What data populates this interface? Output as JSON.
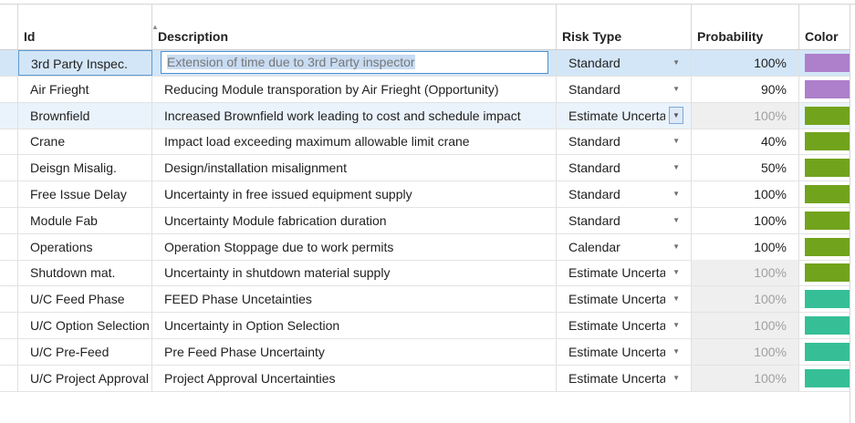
{
  "columns": {
    "id": "Id",
    "description": "Description",
    "risk_type": "Risk Type",
    "probability": "Probability",
    "color": "Color"
  },
  "rows": [
    {
      "id": "3rd Party Inspec.",
      "description": "Extension of time due to 3rd Party inspector",
      "risk_type": "Standard",
      "probability": "100%",
      "color": "#ae7fcb",
      "prob_disabled": false,
      "editing": true
    },
    {
      "id": "Air Frieght",
      "description": "Reducing Module transporation by Air Frieght (Opportunity)",
      "risk_type": "Standard",
      "probability": "90%",
      "color": "#ae7fcb",
      "prob_disabled": false
    },
    {
      "id": "Brownfield",
      "description": "Increased Brownfield work leading to cost and schedule impact",
      "risk_type": "Estimate Uncertainty",
      "probability": "100%",
      "color": "#72a31c",
      "prob_disabled": true,
      "dropdown_open": true
    },
    {
      "id": "Crane",
      "description": "Impact load exceeding maximum allowable limit crane",
      "risk_type": "Standard",
      "probability": "40%",
      "color": "#72a31c",
      "prob_disabled": false
    },
    {
      "id": "Deisgn Misalig.",
      "description": "Design/installation misalignment",
      "risk_type": "Standard",
      "probability": "50%",
      "color": "#72a31c",
      "prob_disabled": false
    },
    {
      "id": "Free Issue Delay",
      "description": "Uncertainty in free issued equipment supply",
      "risk_type": "Standard",
      "probability": "100%",
      "color": "#72a31c",
      "prob_disabled": false
    },
    {
      "id": "Module Fab",
      "description": "Uncertainty Module fabrication duration",
      "risk_type": "Standard",
      "probability": "100%",
      "color": "#72a31c",
      "prob_disabled": false
    },
    {
      "id": "Operations",
      "description": "Operation Stoppage due to work permits",
      "risk_type": "Calendar",
      "probability": "100%",
      "color": "#72a31c",
      "prob_disabled": false
    },
    {
      "id": "Shutdown mat.",
      "description": "Uncertainty in shutdown material supply",
      "risk_type": "Estimate Uncertainty",
      "probability": "100%",
      "color": "#72a31c",
      "prob_disabled": true
    },
    {
      "id": "U/C Feed Phase",
      "description": "FEED Phase Uncetainties",
      "risk_type": "Estimate Uncertainty",
      "probability": "100%",
      "color": "#36bf97",
      "prob_disabled": true
    },
    {
      "id": "U/C Option Selection",
      "description": "Uncertainty in Option Selection",
      "risk_type": "Estimate Uncertainty",
      "probability": "100%",
      "color": "#36bf97",
      "prob_disabled": true
    },
    {
      "id": "U/C Pre-Feed",
      "description": "Pre Feed Phase Uncertainty",
      "risk_type": "Estimate Uncertainty",
      "probability": "100%",
      "color": "#36bf97",
      "prob_disabled": true
    },
    {
      "id": "U/C Project Approval",
      "description": "Project Approval Uncertainties",
      "risk_type": "Estimate Uncertainty",
      "probability": "100%",
      "color": "#36bf97",
      "prob_disabled": true
    }
  ]
}
